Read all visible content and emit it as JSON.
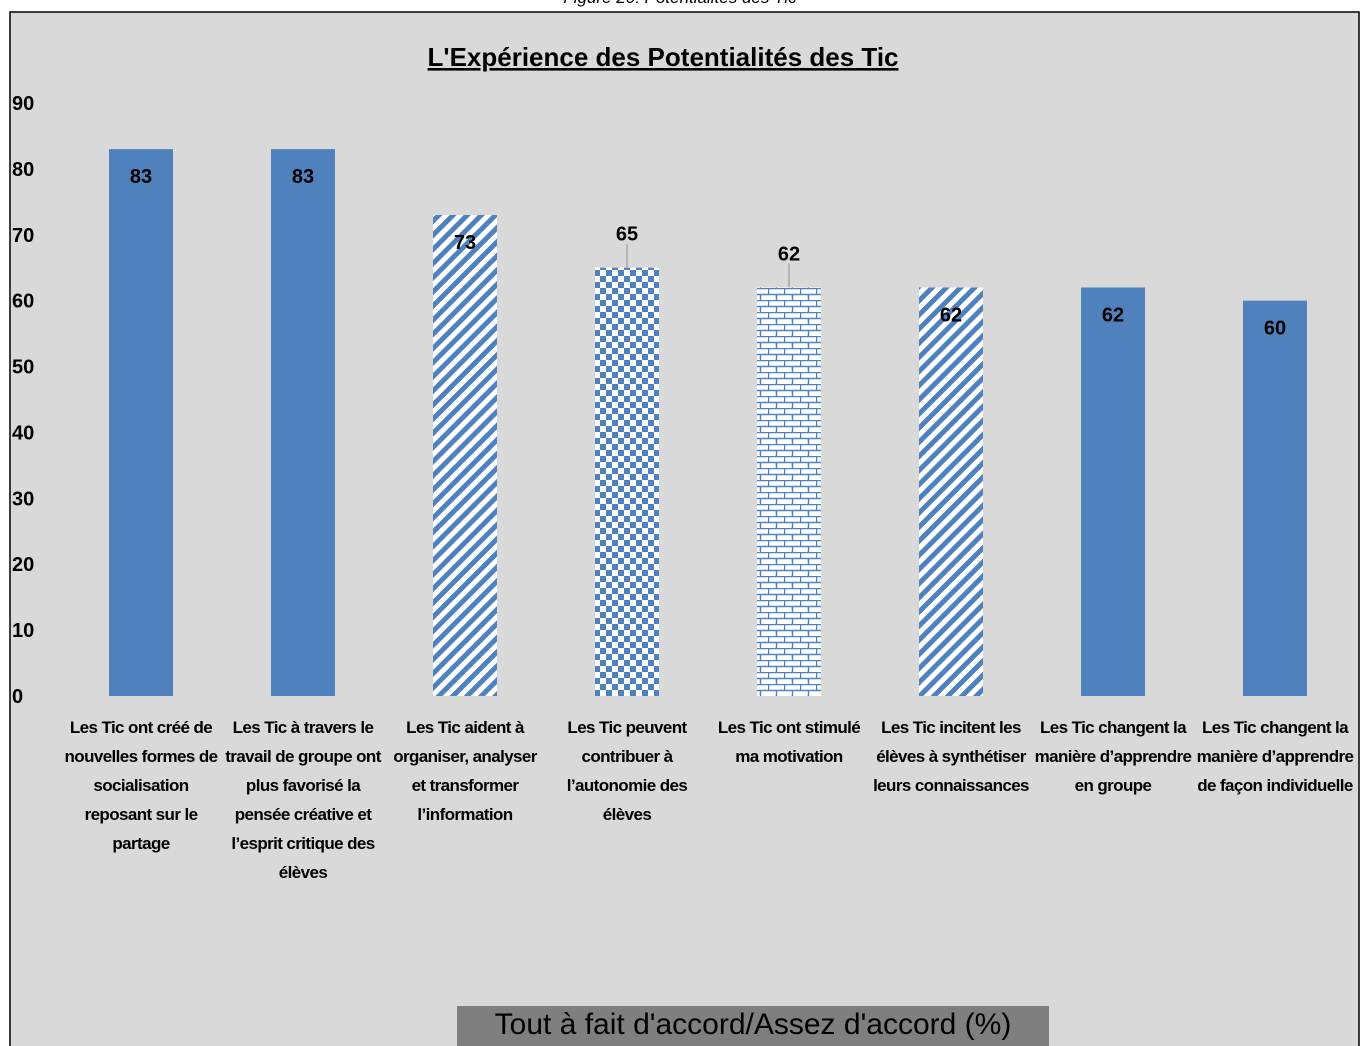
{
  "caption": "Figure 20: Potentialités des Tic",
  "chart_data": {
    "type": "bar",
    "title": "L'Expérience des Potentialités des Tic",
    "x_label": "Tout à fait d'accord/Assez d'accord (%)",
    "categories": [
      "Les Tic ont créé de nouvelles formes de socialisation reposant sur le partage",
      "Les Tic à travers le travail de groupe ont plus favorisé la pensée créative et l’esprit critique des élèves",
      "Les Tic aident à organiser, analyser et transformer l’information",
      "Les Tic peuvent contribuer à l’autonomie des élèves",
      "Les Tic ont stimulé ma motivation",
      "Les Tic incitent les élèves à synthétiser leurs connaissances",
      "Les Tic changent la manière d’apprendre en groupe",
      "Les Tic changent la manière d’apprendre de façon individuelle"
    ],
    "values": [
      83,
      83,
      73,
      65,
      62,
      62,
      62,
      60
    ],
    "patterns": [
      "solid",
      "solid",
      "diagonal",
      "checker",
      "brick",
      "diagonal",
      "solid",
      "solid"
    ],
    "color": "#4f81bd",
    "ylim": [
      0,
      90
    ],
    "yticks": [
      0,
      10,
      20,
      30,
      40,
      50,
      60,
      70,
      80,
      90
    ],
    "grid": false
  }
}
